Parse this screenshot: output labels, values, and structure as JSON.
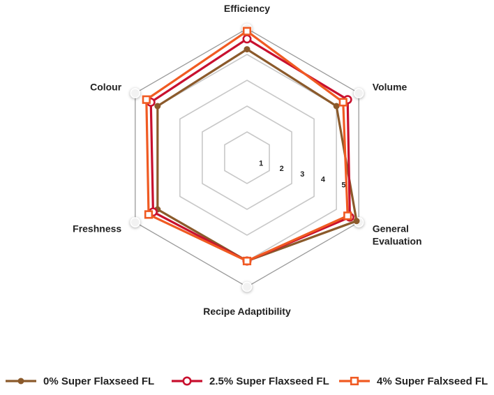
{
  "chart_data": {
    "type": "radar",
    "title": "",
    "axes": [
      "Efficiency",
      "Volume",
      "General\nEvaluation",
      "Recipe Adaptibility",
      "Freshness",
      "Colour"
    ],
    "scale": {
      "min": 0,
      "max": 5,
      "ticks": [
        1,
        2,
        3,
        4,
        5
      ]
    },
    "series": [
      {
        "name": "0% Super Flaxseed FL",
        "color": "#8B5A2B",
        "marker": "dot",
        "values": [
          4.2,
          4.0,
          4.9,
          4.0,
          4.0,
          4.0
        ]
      },
      {
        "name": "2.5% Super Flaxseed FL",
        "color": "#C8102E",
        "marker": "circle",
        "values": [
          4.6,
          4.5,
          4.6,
          4.0,
          4.2,
          4.3
        ]
      },
      {
        "name": "4% Super Falxseed FL",
        "color": "#F05A22",
        "marker": "square",
        "values": [
          4.9,
          4.3,
          4.5,
          4.0,
          4.4,
          4.5
        ]
      }
    ],
    "legend_position": "bottom"
  }
}
